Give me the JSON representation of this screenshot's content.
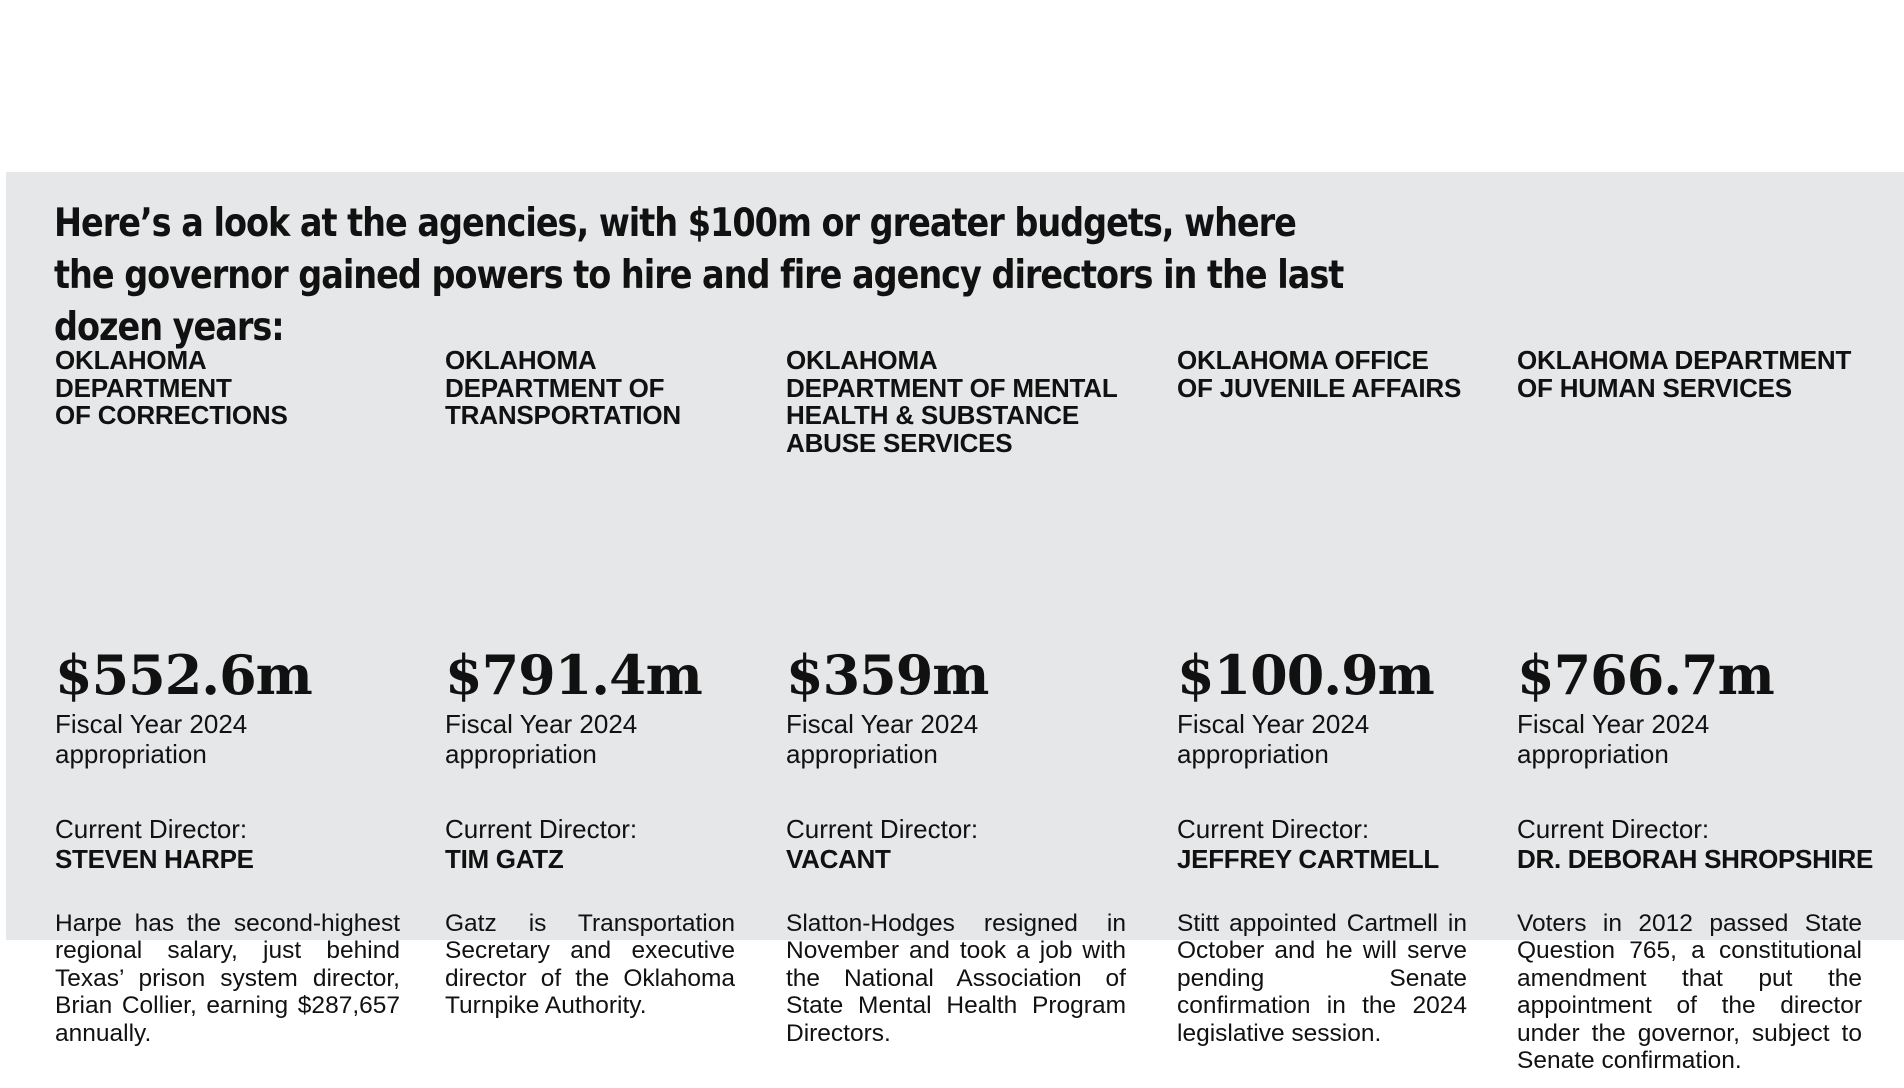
{
  "headline": "Here’s a look at the agencies, with $100m or greater budgets, where the governor gained powers to hire and fire agency directors in the last dozen years:",
  "agencies": [
    {
      "name": "OKLAHOMA\nDEPARTMENT\nOF CORRECTIONS",
      "budget": "$552.6m",
      "fiscal_label": "Fiscal Year 2024\nappropriation",
      "director_label": "Current Director:",
      "director": "STEVEN HARPE",
      "description": "Harpe has the second-highest regional salary, just behind Texas’ prison system director, Brian Collier, earning $287,657 annually."
    },
    {
      "name": "OKLAHOMA\nDEPARTMENT OF\nTRANSPORTATION",
      "budget": "$791.4m",
      "fiscal_label": "Fiscal Year 2024\nappropriation",
      "director_label": "Current Director:",
      "director": "TIM GATZ",
      "description": "Gatz is Transportation Secretary and executive director of the Oklahoma Turnpike Authority."
    },
    {
      "name": "OKLAHOMA\nDEPARTMENT OF MENTAL\nHEALTH & SUBSTANCE\nABUSE SERVICES",
      "budget": "$359m",
      "fiscal_label": "Fiscal Year 2024\nappropriation",
      "director_label": "Current Director:",
      "director": "VACANT",
      "description": "Slatton-Hodges resigned in November and took a job with the National Association of State Mental Health Program Directors."
    },
    {
      "name": "OKLAHOMA OFFICE\nOF JUVENILE AFFAIRS",
      "budget": "$100.9m",
      "fiscal_label": "Fiscal Year 2024\nappropriation",
      "director_label": "Current Director:",
      "director": "JEFFREY CARTMELL",
      "description": "Stitt appointed Cartmell in October and he will serve pending Senate confirmation in the 2024 legislative session."
    },
    {
      "name": "OKLAHOMA DEPARTMENT\nOF HUMAN SERVICES",
      "budget": "$766.7m",
      "fiscal_label": "Fiscal Year 2024\nappropriation",
      "director_label": "Current Director:",
      "director": "DR. DEBORAH SHROPSHIRE",
      "description": "Voters in 2012 passed State Question 765, a constitutional amendment that put the appointment of the director under the governor, subject to Senate confirmation."
    }
  ]
}
